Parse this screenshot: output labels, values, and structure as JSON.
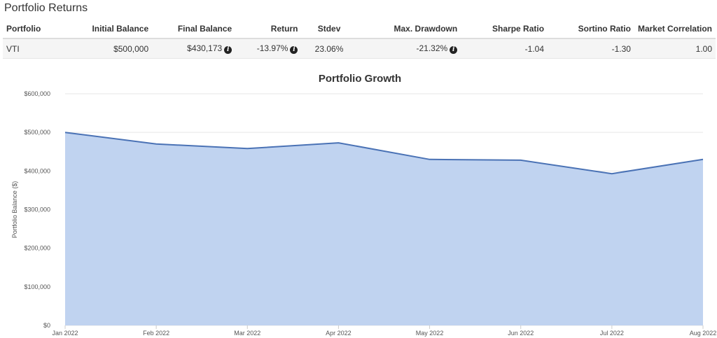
{
  "section": {
    "title": "Portfolio Returns"
  },
  "table": {
    "headers": [
      "Portfolio",
      "Initial Balance",
      "Final Balance",
      "Return",
      "Stdev",
      "Max. Drawdown",
      "Sharpe Ratio",
      "Sortino Ratio",
      "Market Correlation"
    ],
    "row": {
      "portfolio": "VTI",
      "initial_balance": "$500,000",
      "final_balance": "$430,173",
      "return": "-13.97%",
      "stdev": "23.06%",
      "max_drawdown": "-21.32%",
      "sharpe_ratio": "-1.04",
      "sortino_ratio": "-1.30",
      "market_correlation": "1.00"
    },
    "info_icon": "info-icon"
  },
  "chart_data": {
    "type": "area",
    "title": "Portfolio Growth",
    "ylabel": "Portfolio Balance ($)",
    "xlabel": "",
    "categories": [
      "Jan 2022",
      "Feb 2022",
      "Mar 2022",
      "Apr 2022",
      "May 2022",
      "Jun 2022",
      "Jul 2022",
      "Aug 2022"
    ],
    "values": [
      500000,
      470000,
      458000,
      473000,
      430000,
      428000,
      393000,
      430173
    ],
    "ylim": [
      0,
      600000
    ],
    "yticks": [
      0,
      100000,
      200000,
      300000,
      400000,
      500000,
      600000
    ],
    "ytick_labels": [
      "$0",
      "$100,000",
      "$200,000",
      "$300,000",
      "$400,000",
      "$500,000",
      "$600,000"
    ],
    "grid": true,
    "fill_color": "#c0d3f0",
    "line_color": "#4a72b5"
  }
}
